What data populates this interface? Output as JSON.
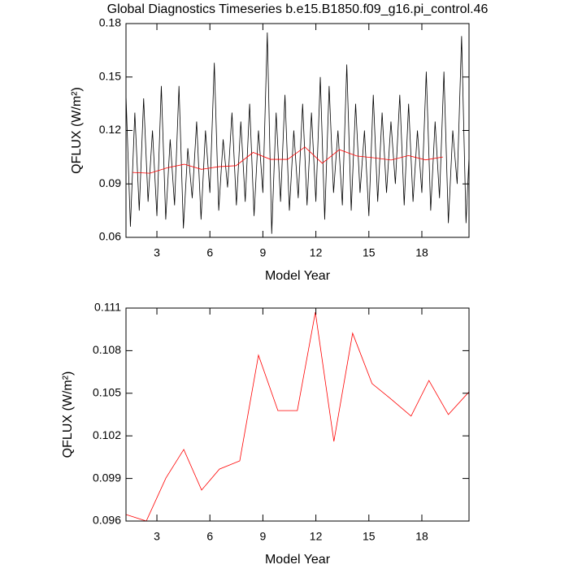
{
  "chart_data": [
    {
      "type": "line",
      "title": "Global Diagnostics Timeseries b.e15.B1850.f09_g16.pi_control.46",
      "xlabel": "Model Year",
      "ylabel": "QFLUX (W/m²)",
      "xlim": [
        1.25,
        20.67
      ],
      "ylim": [
        0.06,
        0.18
      ],
      "xticks": [
        3,
        6,
        9,
        12,
        15,
        18
      ],
      "yticks": [
        0.06,
        0.09,
        0.12,
        0.15,
        0.18
      ],
      "series": [
        {
          "color": "#000000",
          "x": [
            1.25,
            1.5,
            1.75,
            2.0,
            2.25,
            2.5,
            2.75,
            3.0,
            3.25,
            3.5,
            3.75,
            4.0,
            4.25,
            4.5,
            4.75,
            5.0,
            5.25,
            5.5,
            5.75,
            6.0,
            6.25,
            6.5,
            6.75,
            7.0,
            7.25,
            7.5,
            7.75,
            8.0,
            8.25,
            8.5,
            8.75,
            9.0,
            9.25,
            9.5,
            9.75,
            10.0,
            10.25,
            10.5,
            10.75,
            11.0,
            11.25,
            11.5,
            11.75,
            12.0,
            12.25,
            12.5,
            12.75,
            13.0,
            13.25,
            13.5,
            13.75,
            14.0,
            14.25,
            14.5,
            14.75,
            15.0,
            15.25,
            15.5,
            15.75,
            16.0,
            16.25,
            16.5,
            16.75,
            17.0,
            17.25,
            17.5,
            17.75,
            18.0,
            18.25,
            18.5,
            18.75,
            19.0,
            19.25,
            19.5,
            19.75,
            20.0,
            20.25,
            20.5,
            20.67
          ],
          "values": [
            0.14,
            0.066,
            0.13,
            0.075,
            0.138,
            0.08,
            0.12,
            0.072,
            0.145,
            0.07,
            0.115,
            0.078,
            0.145,
            0.065,
            0.11,
            0.082,
            0.125,
            0.07,
            0.12,
            0.085,
            0.158,
            0.075,
            0.115,
            0.088,
            0.13,
            0.078,
            0.125,
            0.08,
            0.135,
            0.072,
            0.12,
            0.085,
            0.175,
            0.062,
            0.13,
            0.08,
            0.14,
            0.075,
            0.12,
            0.082,
            0.135,
            0.078,
            0.13,
            0.08,
            0.15,
            0.07,
            0.145,
            0.085,
            0.12,
            0.078,
            0.157,
            0.075,
            0.135,
            0.085,
            0.12,
            0.072,
            0.14,
            0.08,
            0.13,
            0.085,
            0.125,
            0.09,
            0.14,
            0.078,
            0.135,
            0.08,
            0.12,
            0.085,
            0.153,
            0.075,
            0.125,
            0.082,
            0.153,
            0.068,
            0.12,
            0.09,
            0.173,
            0.068,
            0.105
          ]
        },
        {
          "color": "#ff0000",
          "x": [
            1.62,
            2.6,
            3.57,
            4.55,
            5.52,
            6.5,
            7.48,
            8.45,
            9.43,
            10.4,
            11.38,
            12.36,
            13.33,
            14.31,
            15.28,
            16.26,
            17.24,
            18.21,
            19.19
          ],
          "values": [
            0.09646,
            0.096,
            0.09903,
            0.10104,
            0.09818,
            0.09966,
            0.10024,
            0.10768,
            0.10378,
            0.10378,
            0.11071,
            0.10161,
            0.10923,
            0.10568,
            0.10465,
            0.10339,
            0.1059,
            0.1035,
            0.1051
          ]
        }
      ]
    },
    {
      "type": "line",
      "xlabel": "Model Year",
      "ylabel": "QFLUX (W/m²)",
      "xlim": [
        1.25,
        20.67
      ],
      "ylim": [
        0.096,
        0.111
      ],
      "xticks": [
        3,
        6,
        9,
        12,
        15,
        18
      ],
      "yticks": [
        0.096,
        0.099,
        0.102,
        0.105,
        0.108,
        0.111
      ],
      "series": [
        {
          "color": "#ff0000",
          "x": [
            1.25,
            2.4,
            3.51,
            4.52,
            5.53,
            6.54,
            7.69,
            8.75,
            9.85,
            10.95,
            11.97,
            13.02,
            14.08,
            15.18,
            16.2,
            17.39,
            18.4,
            19.5,
            20.67
          ],
          "values": [
            0.09646,
            0.096,
            0.09903,
            0.10104,
            0.09818,
            0.09966,
            0.10024,
            0.10768,
            0.10378,
            0.10378,
            0.11071,
            0.10161,
            0.10923,
            0.10568,
            0.10465,
            0.10339,
            0.1059,
            0.1035,
            0.1051
          ]
        }
      ]
    }
  ]
}
